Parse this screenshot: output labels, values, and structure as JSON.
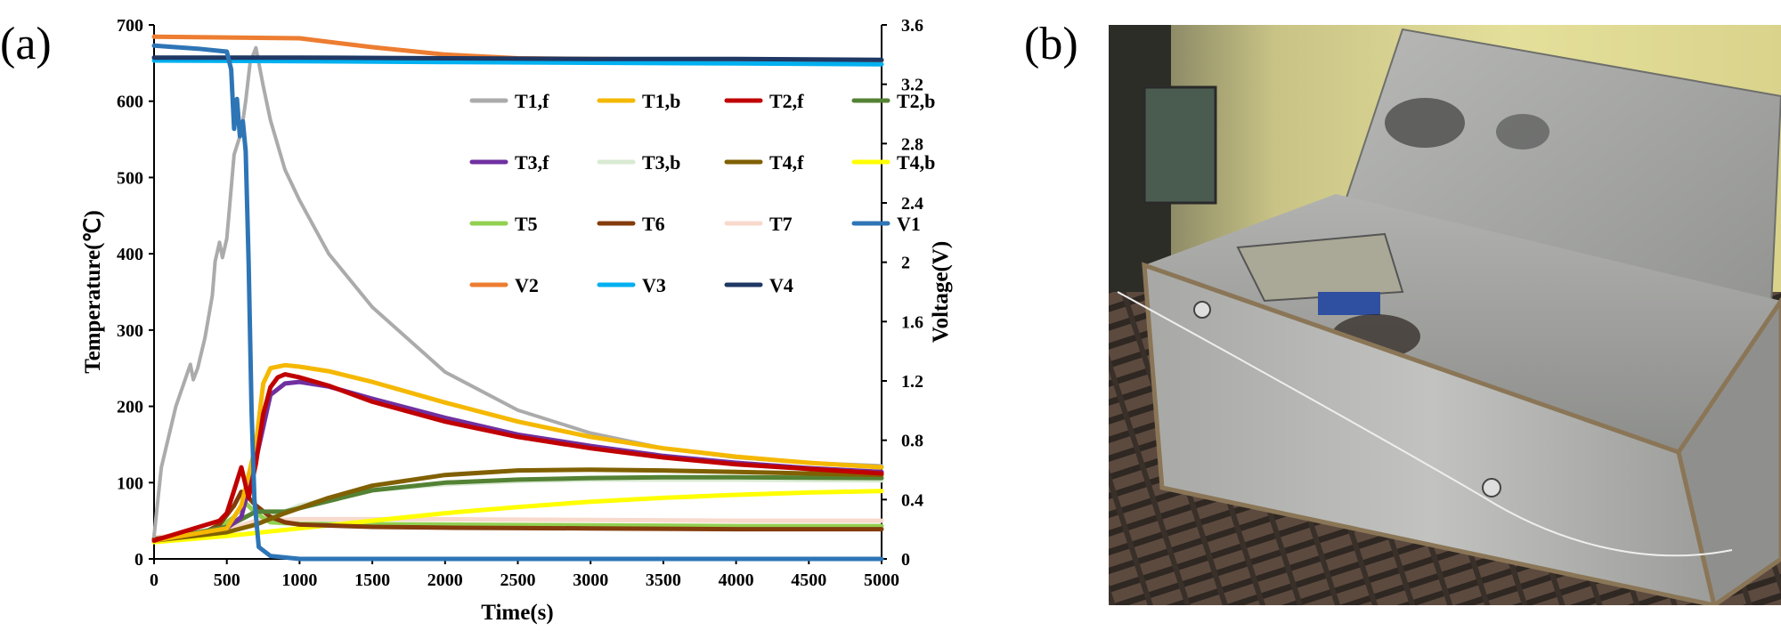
{
  "panels": {
    "a": "(a)",
    "b": "(b)"
  },
  "chart_data": {
    "type": "line",
    "title": "",
    "xlabel": "Time(s)",
    "ylabel_left": "Temperature(℃)",
    "ylabel_right": "Voltage(V)",
    "xlim": [
      0,
      5000
    ],
    "ylim_left": [
      0,
      700
    ],
    "ylim_right": [
      0,
      3.6
    ],
    "x_ticks": [
      "0",
      "500",
      "1000",
      "1500",
      "2000",
      "2500",
      "3000",
      "3500",
      "4000",
      "4500",
      "5000"
    ],
    "y_left_ticks": [
      "0",
      "100",
      "200",
      "300",
      "400",
      "500",
      "600",
      "700"
    ],
    "y_right_ticks": [
      "0",
      "0.4",
      "0.8",
      "1.2",
      "1.6",
      "2",
      "2.4",
      "2.8",
      "3.2",
      "3.6"
    ],
    "grid": false,
    "legend_position": "top-right",
    "series": [
      {
        "name": "T1,f",
        "axis": "left",
        "color": "#ababab",
        "points": [
          [
            0,
            30
          ],
          [
            50,
            120
          ],
          [
            150,
            200
          ],
          [
            250,
            255
          ],
          [
            270,
            235
          ],
          [
            300,
            250
          ],
          [
            350,
            290
          ],
          [
            400,
            345
          ],
          [
            420,
            390
          ],
          [
            450,
            415
          ],
          [
            470,
            395
          ],
          [
            500,
            420
          ],
          [
            550,
            530
          ],
          [
            600,
            560
          ],
          [
            630,
            600
          ],
          [
            660,
            650
          ],
          [
            700,
            670
          ],
          [
            750,
            620
          ],
          [
            800,
            575
          ],
          [
            900,
            510
          ],
          [
            1000,
            470
          ],
          [
            1200,
            400
          ],
          [
            1500,
            330
          ],
          [
            2000,
            245
          ],
          [
            2500,
            195
          ],
          [
            3000,
            165
          ],
          [
            3500,
            145
          ],
          [
            4000,
            133
          ],
          [
            4500,
            126
          ],
          [
            5000,
            122
          ]
        ]
      },
      {
        "name": "T1,b",
        "axis": "left",
        "color": "#f5b800",
        "points": [
          [
            0,
            24
          ],
          [
            500,
            40
          ],
          [
            600,
            70
          ],
          [
            700,
            150
          ],
          [
            750,
            230
          ],
          [
            800,
            250
          ],
          [
            900,
            254
          ],
          [
            1000,
            252
          ],
          [
            1200,
            246
          ],
          [
            1500,
            232
          ],
          [
            2000,
            205
          ],
          [
            2500,
            180
          ],
          [
            3000,
            160
          ],
          [
            3500,
            145
          ],
          [
            4000,
            134
          ],
          [
            4500,
            126
          ],
          [
            5000,
            120
          ]
        ]
      },
      {
        "name": "T2,f",
        "axis": "left",
        "color": "#c00000",
        "points": [
          [
            0,
            24
          ],
          [
            450,
            50
          ],
          [
            500,
            60
          ],
          [
            550,
            90
          ],
          [
            600,
            120
          ],
          [
            650,
            80
          ],
          [
            700,
            125
          ],
          [
            750,
            190
          ],
          [
            800,
            225
          ],
          [
            850,
            238
          ],
          [
            900,
            242
          ],
          [
            1000,
            238
          ],
          [
            1200,
            227
          ],
          [
            1500,
            206
          ],
          [
            2000,
            180
          ],
          [
            2500,
            160
          ],
          [
            3000,
            145
          ],
          [
            3500,
            133
          ],
          [
            4000,
            124
          ],
          [
            4500,
            118
          ],
          [
            5000,
            112
          ]
        ]
      },
      {
        "name": "T2,b",
        "axis": "left",
        "color": "#548235",
        "points": [
          [
            0,
            24
          ],
          [
            500,
            42
          ],
          [
            700,
            62
          ],
          [
            900,
            62
          ],
          [
            1500,
            90
          ],
          [
            2000,
            100
          ],
          [
            2500,
            104
          ],
          [
            3000,
            106
          ],
          [
            3500,
            107
          ],
          [
            4000,
            107
          ],
          [
            5000,
            106
          ]
        ]
      },
      {
        "name": "T3,f",
        "axis": "left",
        "color": "#7030a0",
        "points": [
          [
            0,
            24
          ],
          [
            500,
            40
          ],
          [
            600,
            55
          ],
          [
            700,
            130
          ],
          [
            800,
            215
          ],
          [
            900,
            230
          ],
          [
            1000,
            232
          ],
          [
            1200,
            226
          ],
          [
            1500,
            210
          ],
          [
            2000,
            185
          ],
          [
            2500,
            163
          ],
          [
            3000,
            148
          ],
          [
            3500,
            135
          ],
          [
            4000,
            126
          ],
          [
            4500,
            119
          ],
          [
            5000,
            114
          ]
        ]
      },
      {
        "name": "T3,b",
        "axis": "left",
        "color": "#d9ead3",
        "points": [
          [
            0,
            24
          ],
          [
            600,
            40
          ],
          [
            800,
            55
          ],
          [
            1000,
            70
          ],
          [
            1500,
            90
          ],
          [
            2000,
            98
          ],
          [
            2500,
            102
          ],
          [
            3000,
            104
          ],
          [
            4000,
            104
          ],
          [
            5000,
            103
          ]
        ]
      },
      {
        "name": "T4,f",
        "axis": "left",
        "color": "#806000",
        "points": [
          [
            0,
            24
          ],
          [
            500,
            35
          ],
          [
            700,
            45
          ],
          [
            900,
            60
          ],
          [
            1200,
            80
          ],
          [
            1500,
            96
          ],
          [
            2000,
            110
          ],
          [
            2500,
            116
          ],
          [
            3000,
            117
          ],
          [
            3500,
            116
          ],
          [
            4000,
            114
          ],
          [
            4500,
            112
          ],
          [
            5000,
            110
          ]
        ]
      },
      {
        "name": "T4,b",
        "axis": "left",
        "color": "#ffff00",
        "points": [
          [
            0,
            22
          ],
          [
            500,
            30
          ],
          [
            1000,
            40
          ],
          [
            1500,
            50
          ],
          [
            2000,
            60
          ],
          [
            2500,
            68
          ],
          [
            3000,
            75
          ],
          [
            3500,
            80
          ],
          [
            4000,
            84
          ],
          [
            4500,
            87
          ],
          [
            5000,
            89
          ]
        ]
      },
      {
        "name": "T5",
        "axis": "left",
        "color": "#92d050",
        "points": [
          [
            0,
            25
          ],
          [
            400,
            35
          ],
          [
            550,
            55
          ],
          [
            620,
            75
          ],
          [
            700,
            60
          ],
          [
            800,
            48
          ],
          [
            1000,
            46
          ],
          [
            2000,
            45
          ],
          [
            3000,
            44
          ],
          [
            4000,
            43
          ],
          [
            5000,
            43
          ]
        ]
      },
      {
        "name": "T6",
        "axis": "left",
        "color": "#843c0c",
        "points": [
          [
            0,
            26
          ],
          [
            350,
            35
          ],
          [
            450,
            45
          ],
          [
            550,
            70
          ],
          [
            600,
            88
          ],
          [
            650,
            80
          ],
          [
            700,
            70
          ],
          [
            800,
            55
          ],
          [
            900,
            48
          ],
          [
            1000,
            45
          ],
          [
            1500,
            42
          ],
          [
            2000,
            41
          ],
          [
            3000,
            40
          ],
          [
            4000,
            39
          ],
          [
            5000,
            39
          ]
        ]
      },
      {
        "name": "T7",
        "axis": "left",
        "color": "#f8d9cc",
        "points": [
          [
            0,
            28
          ],
          [
            500,
            38
          ],
          [
            700,
            50
          ],
          [
            1000,
            52
          ],
          [
            2000,
            52
          ],
          [
            3000,
            51
          ],
          [
            4000,
            50
          ],
          [
            5000,
            50
          ]
        ]
      },
      {
        "name": "V1",
        "axis": "right",
        "color": "#2e75b6",
        "points": [
          [
            0,
            3.46
          ],
          [
            300,
            3.44
          ],
          [
            500,
            3.42
          ],
          [
            530,
            3.3
          ],
          [
            550,
            2.9
          ],
          [
            570,
            3.1
          ],
          [
            590,
            2.85
          ],
          [
            610,
            2.95
          ],
          [
            630,
            2.75
          ],
          [
            650,
            2.0
          ],
          [
            670,
            1.0
          ],
          [
            690,
            0.4
          ],
          [
            720,
            0.08
          ],
          [
            800,
            0.02
          ],
          [
            1000,
            0.0
          ],
          [
            5000,
            0.0
          ]
        ]
      },
      {
        "name": "V2",
        "axis": "right",
        "color": "#ed7d31",
        "points": [
          [
            0,
            3.52
          ],
          [
            1000,
            3.51
          ],
          [
            1500,
            3.45
          ],
          [
            2000,
            3.4
          ],
          [
            2500,
            3.375
          ],
          [
            3000,
            3.37
          ],
          [
            4000,
            3.365
          ],
          [
            5000,
            3.36
          ]
        ]
      },
      {
        "name": "V3",
        "axis": "right",
        "color": "#00b0f0",
        "points": [
          [
            0,
            3.36
          ],
          [
            1000,
            3.355
          ],
          [
            2000,
            3.35
          ],
          [
            3000,
            3.345
          ],
          [
            4000,
            3.34
          ],
          [
            5000,
            3.335
          ]
        ]
      },
      {
        "name": "V4",
        "axis": "right",
        "color": "#1f3864",
        "points": [
          [
            0,
            3.38
          ],
          [
            1000,
            3.38
          ],
          [
            2000,
            3.375
          ],
          [
            3000,
            3.37
          ],
          [
            4000,
            3.37
          ],
          [
            5000,
            3.365
          ]
        ]
      }
    ]
  }
}
